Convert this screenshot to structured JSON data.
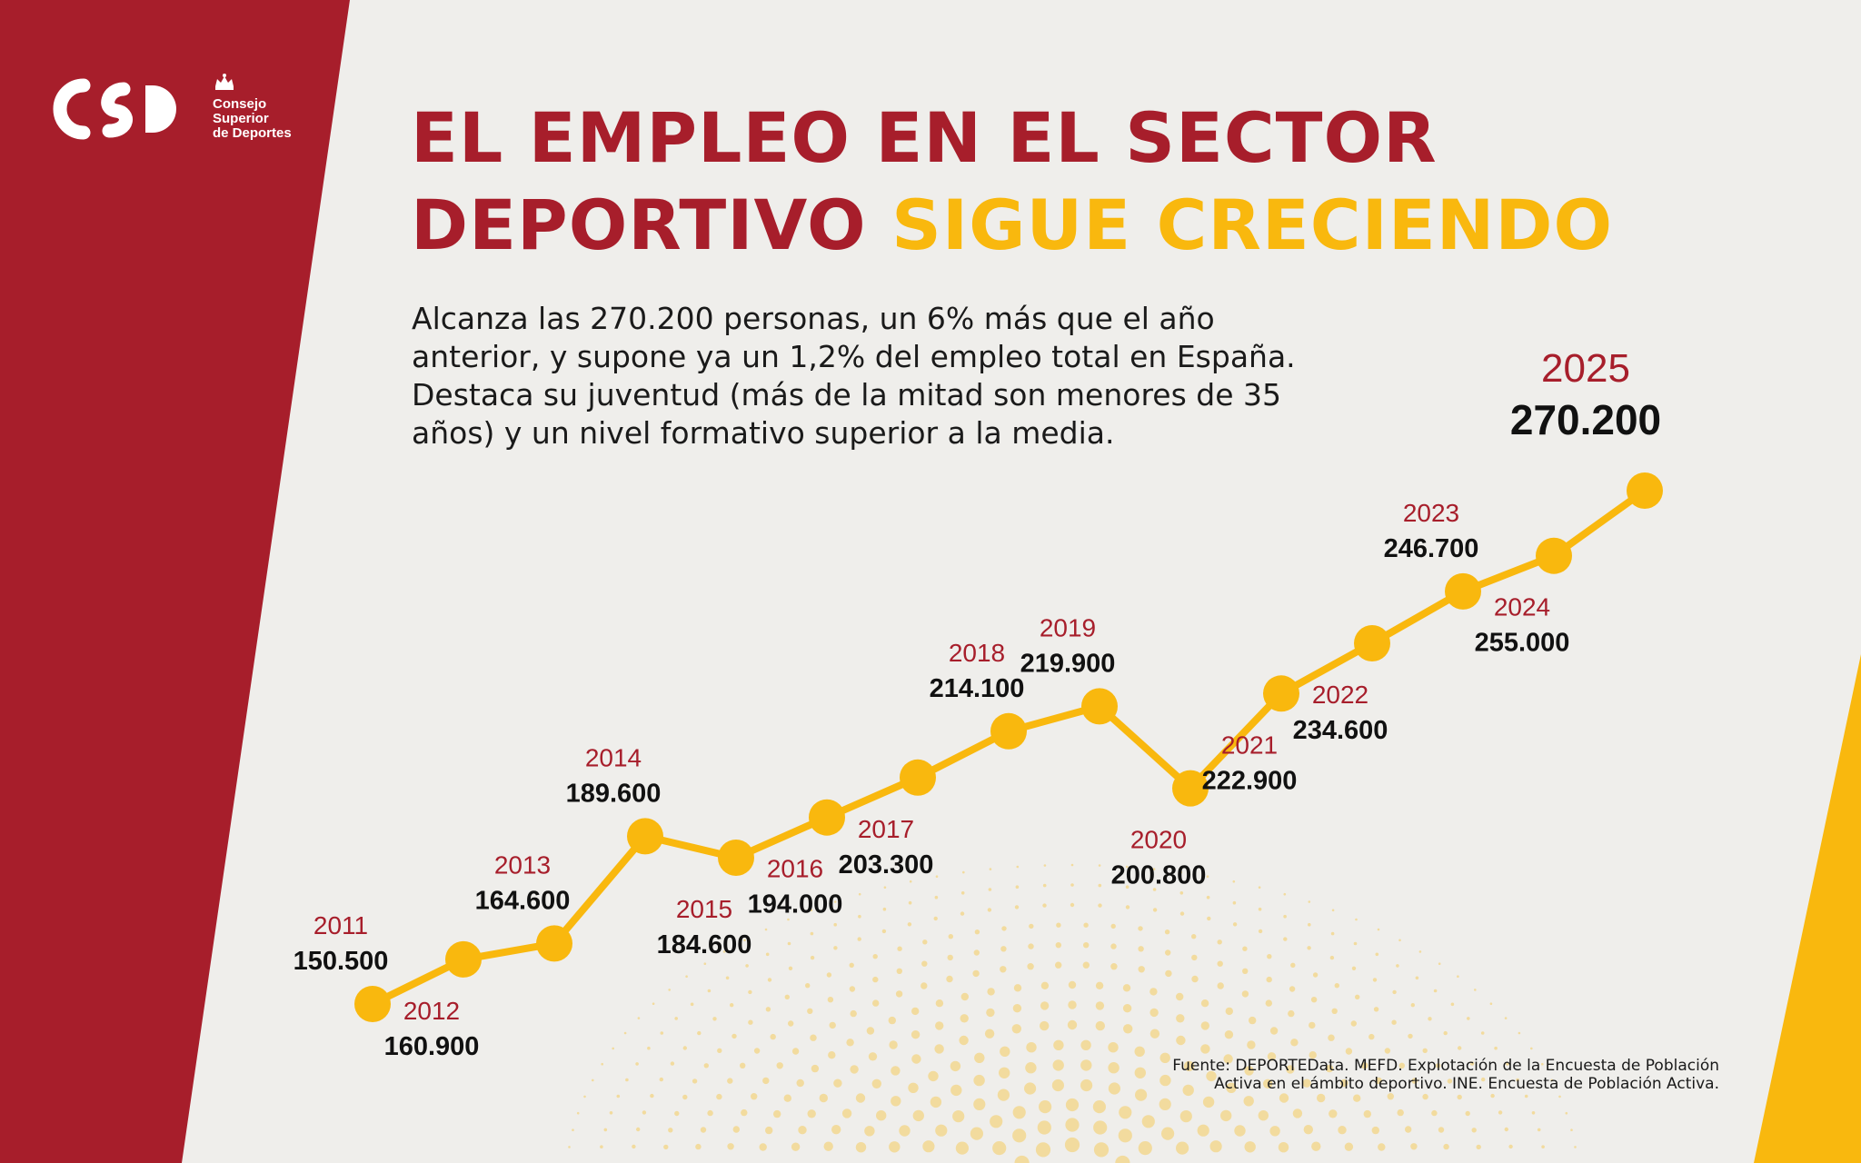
{
  "logo": {
    "line1": "Consejo",
    "line2": "Superior",
    "line3": "de Deportes"
  },
  "title": {
    "line1": "EL EMPLEO EN EL SECTOR",
    "line2_start": "DEPORTIVO ",
    "line2_accent": "SIGUE CRECIENDO"
  },
  "description": {
    "line1": "Alcanza las 270.200 personas, un 6% más que el año",
    "line2": "anterior, y supone ya un 1,2% del empleo total en España.",
    "line3": "Destaca su juventud (más de la mitad son menores de 35",
    "line4": "años) y un nivel formativo superior a la media."
  },
  "source": {
    "line1": "Fuente: DEPORTEData. MEFD. Explotación de la Encuesta de Población",
    "line2": "Activa en el ámbito deportivo. INE. Encuesta de Población Activa."
  },
  "colors": {
    "red": "#a71e2b",
    "yellow": "#f9b80e",
    "background": "#efeeeb",
    "text": "#111111"
  },
  "chart_data": {
    "type": "line",
    "x": [
      2011,
      2012,
      2013,
      2014,
      2015,
      2016,
      2017,
      2018,
      2019,
      2020,
      2021,
      2022,
      2023,
      2024,
      2025
    ],
    "year_labels": [
      "2011",
      "2012",
      "2013",
      "2014",
      "2015",
      "2016",
      "2017",
      "2018",
      "2019",
      "2020",
      "2021",
      "2022",
      "2023",
      "2024",
      "2025"
    ],
    "values": [
      150500,
      160900,
      164600,
      189600,
      184600,
      194000,
      203300,
      214100,
      219900,
      200800,
      222900,
      234600,
      246700,
      255000,
      270200
    ],
    "value_labels": [
      "150.500",
      "160.900",
      "164.600",
      "189.600",
      "184.600",
      "194.000",
      "203.300",
      "214.100",
      "219.900",
      "200.800",
      "222.900",
      "234.600",
      "246.700",
      "255.000",
      "270.200"
    ],
    "label_positions": [
      "above",
      "below",
      "above",
      "above",
      "below",
      "below",
      "below",
      "above",
      "above",
      "below",
      "below",
      "below",
      "above",
      "below",
      "above"
    ],
    "highlight_last": true,
    "grid": false,
    "legend": "none",
    "line_color": "#f9b80e"
  }
}
